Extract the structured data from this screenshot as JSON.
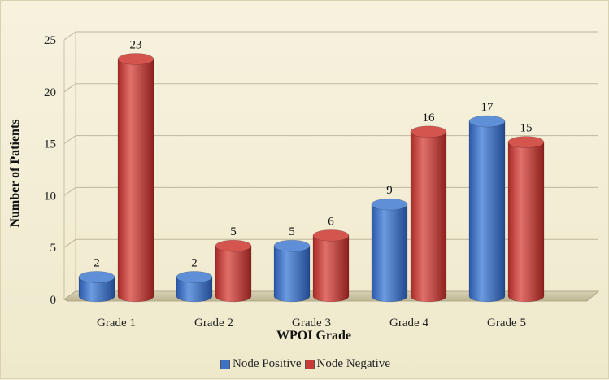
{
  "chart_data": {
    "type": "bar",
    "title": "",
    "xlabel": "WPOI Grade",
    "ylabel": "Number of Patients",
    "categories": [
      "Grade 1",
      "Grade 2",
      "Grade 3",
      "Grade 4",
      "Grade 5"
    ],
    "series": [
      {
        "name": "Node Positive",
        "values": [
          2,
          2,
          5,
          9,
          17
        ],
        "color": "#3d72c8"
      },
      {
        "name": "Node Negative",
        "values": [
          23,
          5,
          6,
          16,
          15
        ],
        "color": "#c83b36"
      }
    ],
    "ylim": [
      0,
      25
    ],
    "yticks": [
      "0",
      "5",
      "10",
      "15",
      "20",
      "25"
    ],
    "grid": true,
    "legend_position": "bottom",
    "style": "3d cylinder"
  }
}
